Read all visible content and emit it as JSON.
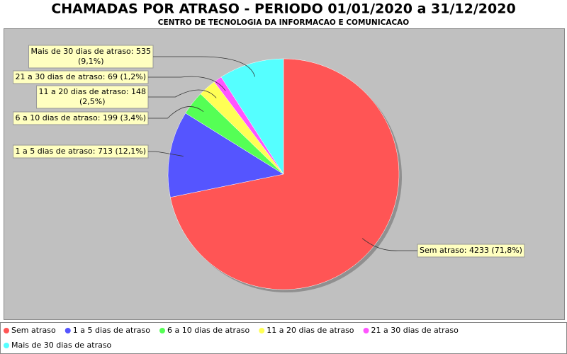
{
  "chart_data": {
    "type": "pie",
    "title": "CHAMADAS POR ATRASO - PERIODO 01/01/2020 a 31/12/2020",
    "subtitle": "CENTRO DE TECNOLOGIA DA INFORMACAO E COMUNICACAO",
    "categories": [
      "Sem atraso",
      "1 a 5 dias de atraso",
      "6 a 10 dias de atraso",
      "11 a 20 dias de atraso",
      "21 a 30 dias de atraso",
      "Mais de 30 dias de atraso"
    ],
    "values": [
      4233,
      713,
      199,
      148,
      69,
      535
    ],
    "value_labels": [
      "Sem atraso: 4233 (71,8%)",
      "1 a 5 dias de atraso: 713 (12,1%)",
      "6 a 10 dias de atraso: 199 (3,4%)",
      "11 a 20 dias de atraso: 148 (2,5%)",
      "21 a 30 dias de atraso: 69 (1,2%)",
      "Mais de 30 dias de atraso: 535 (9,1%)"
    ],
    "colors": [
      "#ff5555",
      "#5555ff",
      "#55ff55",
      "#ffff55",
      "#ff55ff",
      "#55ffff"
    ]
  }
}
